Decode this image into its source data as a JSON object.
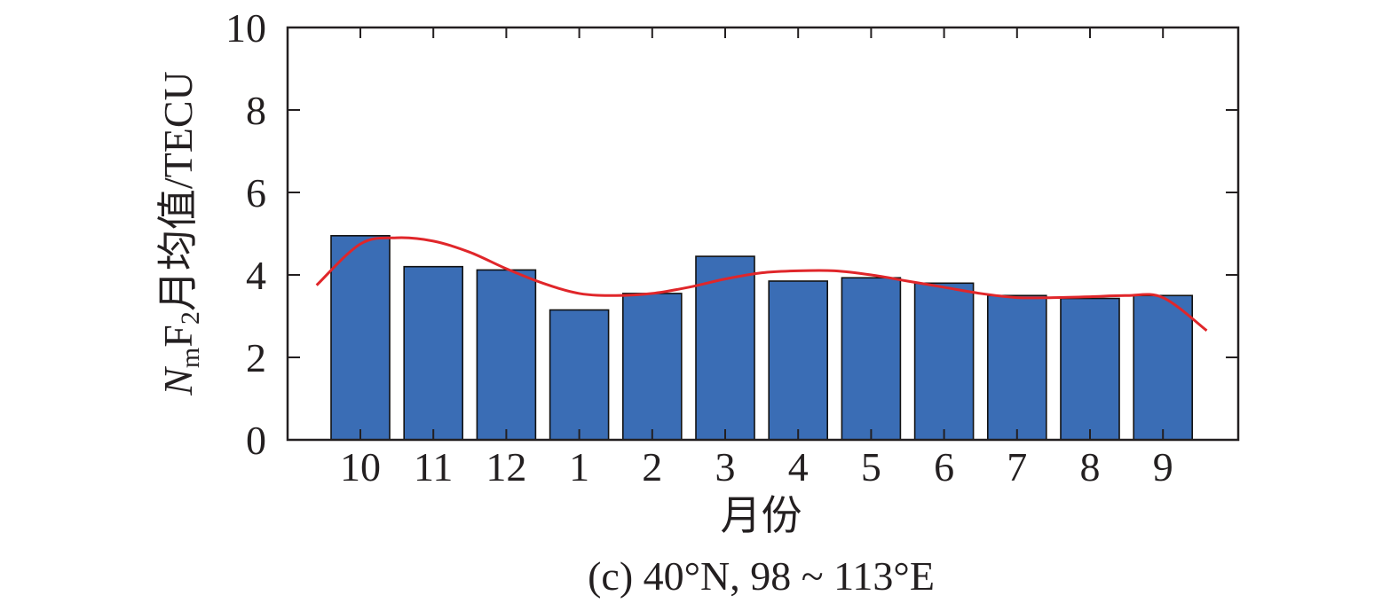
{
  "chart_data": {
    "type": "bar",
    "categories": [
      "10",
      "11",
      "12",
      "1",
      "2",
      "3",
      "4",
      "5",
      "6",
      "7",
      "8",
      "9"
    ],
    "values": [
      4.95,
      4.2,
      4.12,
      3.15,
      3.55,
      4.45,
      3.85,
      3.93,
      3.8,
      3.5,
      3.43,
      3.5
    ],
    "fit_curve": {
      "x": [
        -0.6,
        0,
        0.5,
        1,
        1.5,
        2,
        2.5,
        3,
        3.5,
        4,
        4.5,
        5,
        5.5,
        6,
        6.5,
        7,
        7.5,
        8,
        8.5,
        9,
        9.5,
        10,
        10.5,
        11,
        11.6
      ],
      "y": [
        3.75,
        4.75,
        4.9,
        4.82,
        4.55,
        4.15,
        3.8,
        3.55,
        3.5,
        3.55,
        3.7,
        3.9,
        4.05,
        4.1,
        4.1,
        4.0,
        3.85,
        3.7,
        3.55,
        3.45,
        3.45,
        3.47,
        3.5,
        3.45,
        2.65
      ]
    },
    "ylim": [
      0,
      10
    ],
    "yticks": [
      "0",
      "2",
      "4",
      "6",
      "8",
      "10"
    ],
    "xlabel": "月份",
    "ylabel": {
      "prefix": "N",
      "sub_m": "m",
      "mid": "F",
      "sub_2": "2",
      "suffix": "月均值/TECU"
    },
    "caption": "(c) 40°N, 98 ~ 113°E",
    "grid": false,
    "legend": "none",
    "colors": {
      "bar_fill": "#3a6db5",
      "bar_edge": "#111111",
      "curve": "#e0262a",
      "axis": "#231f20"
    }
  }
}
